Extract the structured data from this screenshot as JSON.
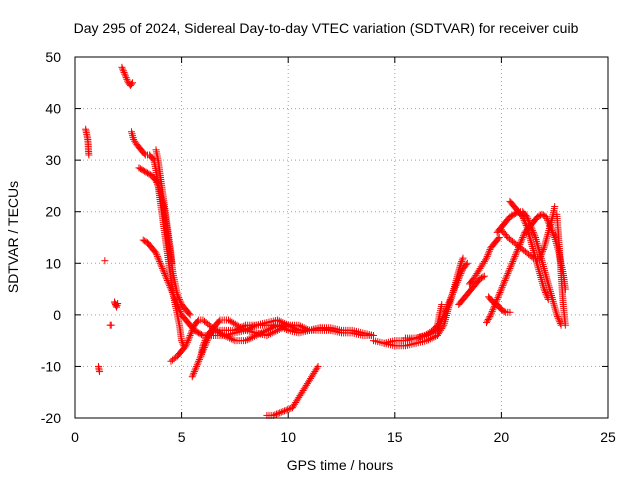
{
  "chart_data": {
    "type": "scatter",
    "title": "Day 295 of 2024, Sidereal Day-to-day VTEC variation (SDTVAR) for receiver cuib",
    "xlabel": "GPS time / hours",
    "ylabel": "SDTVAR / TECUs",
    "xlim": [
      0,
      25
    ],
    "ylim": [
      -20,
      50
    ],
    "xticks": [
      0,
      5,
      10,
      15,
      20,
      25
    ],
    "yticks": [
      -20,
      -10,
      0,
      10,
      20,
      30,
      40,
      50
    ],
    "grid": true,
    "marker": "+",
    "series": [
      {
        "name": "SDTVAR",
        "color": "#ff0000",
        "tracks": [
          [
            [
              0.5,
              36
            ],
            [
              0.55,
              35
            ],
            [
              0.6,
              34
            ],
            [
              0.62,
              33
            ],
            [
              0.63,
              32
            ],
            [
              0.65,
              31
            ]
          ],
          [
            [
              1.4,
              10.5
            ]
          ],
          [
            [
              1.1,
              -10
            ],
            [
              1.15,
              -11
            ]
          ],
          [
            [
              1.65,
              -2
            ],
            [
              1.7,
              -2
            ]
          ],
          [
            [
              1.85,
              2.5
            ],
            [
              1.9,
              2
            ],
            [
              1.95,
              1.5
            ],
            [
              2.0,
              2.2
            ]
          ],
          [
            [
              2.2,
              48
            ],
            [
              2.3,
              47
            ],
            [
              2.4,
              46
            ],
            [
              2.5,
              45
            ],
            [
              2.6,
              44.5
            ],
            [
              2.7,
              45
            ]
          ],
          [
            [
              2.65,
              35.5
            ],
            [
              2.75,
              34
            ],
            [
              2.9,
              33
            ],
            [
              3.1,
              32
            ],
            [
              3.3,
              31
            ],
            [
              3.5,
              31
            ],
            [
              3.7,
              30
            ],
            [
              3.8,
              28
            ],
            [
              3.9,
              25
            ],
            [
              4.0,
              22
            ],
            [
              4.1,
              19
            ],
            [
              4.2,
              16
            ],
            [
              4.3,
              13
            ],
            [
              4.4,
              10
            ],
            [
              4.5,
              7
            ],
            [
              4.6,
              4
            ],
            [
              4.7,
              2
            ],
            [
              4.8,
              0
            ],
            [
              4.9,
              -2
            ],
            [
              5.0,
              -5
            ],
            [
              5.1,
              -6
            ]
          ],
          [
            [
              3.0,
              28.5
            ],
            [
              3.2,
              28
            ],
            [
              3.4,
              27.5
            ],
            [
              3.6,
              27
            ],
            [
              3.8,
              26
            ],
            [
              4.0,
              24
            ],
            [
              4.1,
              22
            ],
            [
              4.2,
              20
            ],
            [
              4.3,
              17
            ],
            [
              4.4,
              14
            ],
            [
              4.5,
              11
            ],
            [
              4.6,
              8
            ],
            [
              4.7,
              6
            ],
            [
              4.8,
              4
            ],
            [
              5.0,
              2
            ],
            [
              5.2,
              1
            ],
            [
              5.4,
              0
            ]
          ],
          [
            [
              3.8,
              32
            ],
            [
              3.9,
              30
            ],
            [
              4.0,
              27
            ],
            [
              4.1,
              24
            ],
            [
              4.2,
              21
            ],
            [
              4.3,
              18
            ],
            [
              4.4,
              15
            ],
            [
              4.5,
              12
            ],
            [
              4.55,
              10
            ]
          ],
          [
            [
              3.2,
              14.5
            ],
            [
              3.4,
              14
            ],
            [
              3.6,
              13
            ],
            [
              3.8,
              12
            ],
            [
              4.0,
              10
            ],
            [
              4.2,
              8
            ],
            [
              4.4,
              6
            ],
            [
              4.6,
              4
            ],
            [
              4.8,
              2
            ],
            [
              5.0,
              0
            ],
            [
              5.2,
              -1
            ],
            [
              5.4,
              -2
            ],
            [
              5.6,
              -3
            ],
            [
              5.8,
              -3.5
            ],
            [
              6.0,
              -4
            ],
            [
              6.5,
              -4
            ],
            [
              7.0,
              -4
            ],
            [
              7.5,
              -3.5
            ],
            [
              8.0,
              -3
            ],
            [
              8.5,
              -2
            ],
            [
              9.0,
              -1.5
            ],
            [
              9.5,
              -1
            ],
            [
              10.0,
              -2
            ],
            [
              10.5,
              -3
            ],
            [
              11.0,
              -3
            ],
            [
              11.5,
              -2.5
            ],
            [
              12.0,
              -2.5
            ],
            [
              12.5,
              -3
            ],
            [
              13.0,
              -3
            ],
            [
              13.5,
              -3.5
            ],
            [
              14.0,
              -4
            ]
          ],
          [
            [
              4.5,
              -9
            ],
            [
              4.8,
              -8
            ],
            [
              5.0,
              -7
            ],
            [
              5.2,
              -6
            ],
            [
              5.4,
              -4
            ],
            [
              5.6,
              -2
            ],
            [
              5.8,
              -1
            ],
            [
              6.0,
              -1
            ],
            [
              6.3,
              -2
            ],
            [
              6.6,
              -3
            ],
            [
              7.0,
              -4
            ],
            [
              7.5,
              -5
            ],
            [
              8.0,
              -5
            ],
            [
              8.5,
              -4
            ],
            [
              9.0,
              -3
            ],
            [
              9.5,
              -2
            ],
            [
              10.0,
              -3
            ],
            [
              10.5,
              -3.5
            ],
            [
              11.0,
              -3
            ],
            [
              11.5,
              -2.5
            ],
            [
              12.0,
              -3
            ],
            [
              12.5,
              -3.5
            ],
            [
              13.0,
              -3.5
            ],
            [
              13.5,
              -4
            ],
            [
              14.0,
              -4
            ]
          ],
          [
            [
              5.5,
              -12
            ],
            [
              5.7,
              -10
            ],
            [
              5.9,
              -8
            ],
            [
              6.1,
              -6
            ],
            [
              6.3,
              -4
            ],
            [
              6.5,
              -3
            ],
            [
              6.8,
              -3
            ],
            [
              7.1,
              -3
            ],
            [
              7.5,
              -3
            ],
            [
              8.0,
              -2
            ],
            [
              8.5,
              -2
            ],
            [
              9.0,
              -2
            ],
            [
              9.5,
              -2
            ],
            [
              10.0,
              -2
            ],
            [
              10.5,
              -2
            ],
            [
              11.0,
              -3
            ],
            [
              11.5,
              -3
            ],
            [
              12.0,
              -3
            ]
          ],
          [
            [
              5.9,
              -8
            ],
            [
              6.0,
              -6
            ],
            [
              6.2,
              -4
            ],
            [
              6.4,
              -3
            ],
            [
              6.6,
              -2
            ],
            [
              6.8,
              -1
            ],
            [
              7.2,
              -1
            ],
            [
              7.6,
              -2
            ],
            [
              8.0,
              -3
            ],
            [
              8.5,
              -3.5
            ],
            [
              9.0,
              -4
            ],
            [
              9.5,
              -3
            ],
            [
              10.0,
              -2
            ]
          ],
          [
            [
              9.0,
              -19.5
            ],
            [
              9.3,
              -19.5
            ],
            [
              9.6,
              -19
            ],
            [
              9.9,
              -18.5
            ],
            [
              10.2,
              -18
            ],
            [
              10.5,
              -16
            ],
            [
              10.8,
              -14
            ],
            [
              11.1,
              -12
            ],
            [
              11.4,
              -10
            ]
          ],
          [
            [
              14.0,
              -5
            ],
            [
              14.5,
              -5.5
            ],
            [
              15.0,
              -6
            ],
            [
              15.5,
              -6
            ],
            [
              16.0,
              -5.5
            ],
            [
              16.5,
              -5
            ],
            [
              17.0,
              -4
            ],
            [
              17.3,
              -2
            ],
            [
              17.5,
              1
            ],
            [
              17.7,
              4
            ],
            [
              17.9,
              7
            ],
            [
              18.1,
              10
            ],
            [
              18.2,
              11
            ]
          ],
          [
            [
              15.5,
              -4.5
            ],
            [
              16.0,
              -4.5
            ],
            [
              16.5,
              -4
            ],
            [
              17.0,
              -3
            ],
            [
              17.2,
              -1
            ],
            [
              17.4,
              1
            ],
            [
              17.6,
              3
            ],
            [
              17.8,
              5
            ],
            [
              18.0,
              7
            ],
            [
              18.2,
              9
            ],
            [
              18.4,
              10
            ]
          ],
          [
            [
              14.5,
              -5.5
            ],
            [
              15.0,
              -5
            ],
            [
              15.5,
              -5
            ],
            [
              16.0,
              -4.5
            ],
            [
              16.4,
              -4
            ],
            [
              16.8,
              -3
            ],
            [
              17.0,
              -2
            ],
            [
              17.1,
              0
            ],
            [
              17.2,
              2
            ]
          ],
          [
            [
              18.0,
              2
            ],
            [
              18.2,
              3
            ],
            [
              18.4,
              4
            ],
            [
              18.6,
              5
            ],
            [
              18.8,
              6
            ],
            [
              19.0,
              7
            ],
            [
              19.2,
              7.5
            ]
          ],
          [
            [
              18.5,
              6
            ],
            [
              18.7,
              7
            ],
            [
              19.0,
              9
            ],
            [
              19.3,
              11
            ],
            [
              19.5,
              13
            ],
            [
              19.7,
              14
            ],
            [
              19.9,
              15
            ]
          ],
          [
            [
              19.3,
              -1.5
            ],
            [
              19.5,
              0
            ],
            [
              19.7,
              2
            ],
            [
              19.9,
              4
            ],
            [
              20.1,
              6
            ],
            [
              20.3,
              8
            ],
            [
              20.5,
              10
            ],
            [
              20.7,
              12
            ],
            [
              20.9,
              14
            ],
            [
              21.1,
              16
            ],
            [
              21.3,
              17
            ],
            [
              21.5,
              18
            ],
            [
              21.7,
              19
            ],
            [
              21.9,
              19.5
            ],
            [
              22.1,
              19
            ],
            [
              22.3,
              17
            ],
            [
              22.5,
              15
            ],
            [
              22.7,
              12
            ],
            [
              22.9,
              8
            ],
            [
              23.0,
              5
            ]
          ],
          [
            [
              19.8,
              16
            ],
            [
              20.0,
              17
            ],
            [
              20.2,
              18
            ],
            [
              20.4,
              19
            ],
            [
              20.6,
              19.5
            ],
            [
              20.8,
              20
            ],
            [
              21.0,
              20
            ],
            [
              21.2,
              19
            ],
            [
              21.4,
              17
            ],
            [
              21.6,
              15
            ],
            [
              21.8,
              12
            ],
            [
              22.0,
              9
            ],
            [
              22.2,
              6
            ],
            [
              22.4,
              3
            ],
            [
              22.6,
              0
            ],
            [
              22.8,
              -2
            ]
          ],
          [
            [
              20.0,
              16.5
            ],
            [
              20.3,
              15
            ],
            [
              20.6,
              14
            ],
            [
              20.9,
              13
            ],
            [
              21.2,
              12
            ],
            [
              21.5,
              11
            ],
            [
              21.8,
              11
            ],
            [
              22.0,
              13
            ],
            [
              22.2,
              16
            ],
            [
              22.4,
              19
            ],
            [
              22.5,
              21
            ]
          ],
          [
            [
              20.4,
              22
            ],
            [
              20.6,
              21
            ],
            [
              20.8,
              20
            ],
            [
              21.0,
              19
            ],
            [
              21.2,
              17
            ],
            [
              21.4,
              14
            ],
            [
              21.6,
              11
            ],
            [
              21.8,
              8
            ],
            [
              22.0,
              5
            ],
            [
              22.2,
              3
            ]
          ],
          [
            [
              19.4,
              3.5
            ],
            [
              19.6,
              2.5
            ],
            [
              19.8,
              2
            ],
            [
              20.0,
              1
            ],
            [
              20.2,
              0.5
            ],
            [
              20.4,
              0.5
            ]
          ],
          [
            [
              22.6,
              19.5
            ],
            [
              22.65,
              17
            ],
            [
              22.7,
              14
            ],
            [
              22.75,
              11
            ],
            [
              22.8,
              8
            ],
            [
              22.85,
              5
            ],
            [
              22.9,
              2
            ],
            [
              22.95,
              0
            ],
            [
              23.0,
              -2
            ]
          ]
        ]
      }
    ]
  }
}
